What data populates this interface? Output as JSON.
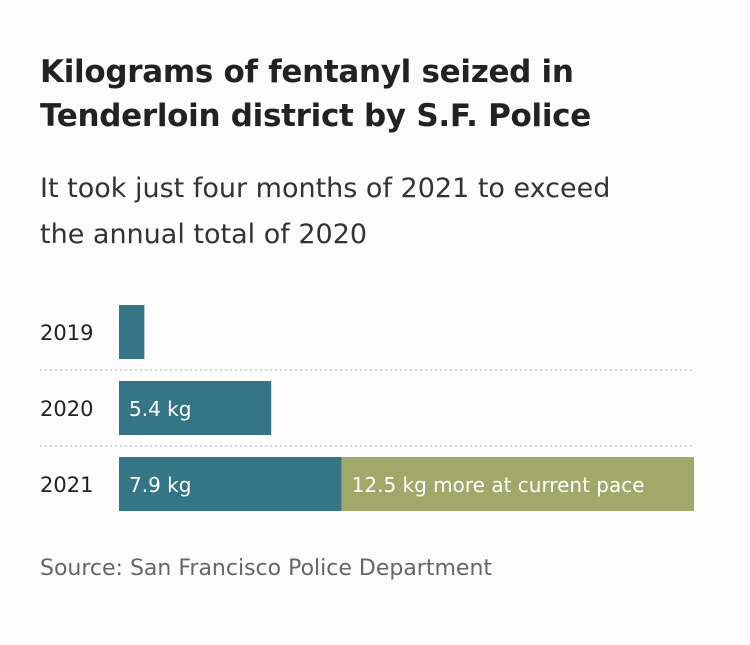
{
  "title": {
    "line1": "Kilograms of fentanyl seized in",
    "line2": "Tenderloin district by S.F. Police"
  },
  "subtitle": {
    "line1": "It took just four months of 2021 to exceed",
    "line2": "the annual total of 2020"
  },
  "source": "Source: San Francisco Police Department",
  "colors": {
    "actual": "#347685",
    "projected": "#a0a86a",
    "divider": "#cccccc",
    "label": "#222222",
    "bar_text": "#ffffff"
  },
  "chart_data": {
    "type": "bar",
    "orientation": "horizontal",
    "stacked": true,
    "categories": [
      "2019",
      "2020",
      "2021"
    ],
    "series": [
      {
        "name": "Seized",
        "values": [
          0.9,
          5.4,
          7.9
        ],
        "color": "#347685"
      },
      {
        "name": "Projected at current pace",
        "values": [
          0,
          0,
          12.5
        ],
        "color": "#a0a86a"
      }
    ],
    "data_labels": [
      [
        "",
        "5.4 kg",
        "7.9 kg"
      ],
      [
        "",
        "",
        "12.5 kg more at current pace"
      ]
    ],
    "xlim": [
      0,
      20.4
    ],
    "grid": false,
    "legend": "none"
  }
}
